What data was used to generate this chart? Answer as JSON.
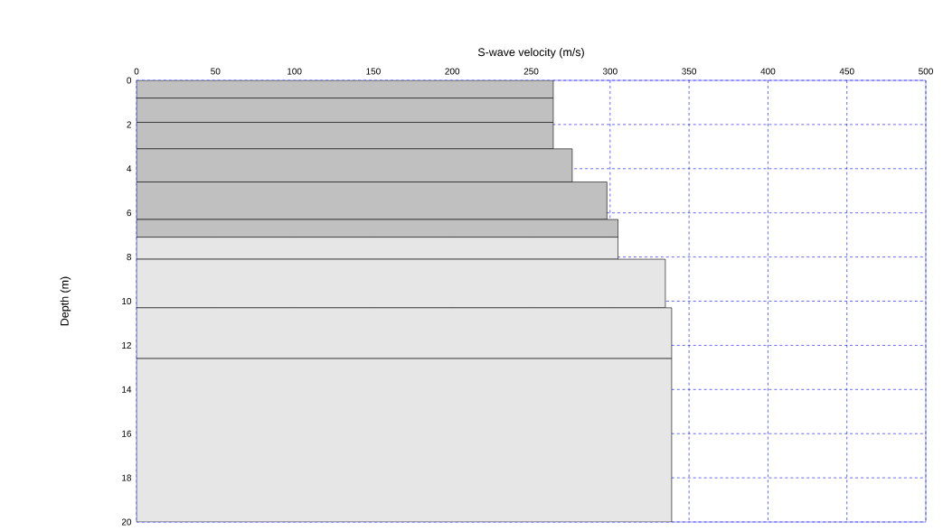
{
  "chart_data": {
    "type": "histogram",
    "orientation": "horizontal",
    "xlabel": "S-wave velocity (m/s)",
    "ylabel": "Depth (m)",
    "bins": [
      0,
      0.8,
      1.9,
      3.1,
      4.6,
      6.3,
      7.1,
      8.1,
      10.3,
      12.6,
      20
    ],
    "values": [
      264,
      264,
      264,
      276,
      298,
      305,
      305,
      335,
      339,
      339
    ],
    "colors": [
      "#c0c0c0",
      "#c0c0c0",
      "#c0c0c0",
      "#c0c0c0",
      "#c0c0c0",
      "#c0c0c0",
      "#e6e6e6",
      "#e6e6e6",
      "#e6e6e6",
      "#e6e6e6"
    ],
    "xlim": [
      0,
      500
    ],
    "ylim": [
      20,
      0
    ],
    "xticks": [
      0,
      50,
      100,
      150,
      200,
      250,
      300,
      350,
      400,
      450,
      500
    ],
    "yticks": [
      0,
      2,
      4,
      6,
      8,
      10,
      12,
      14,
      16,
      18,
      20
    ],
    "grid": true
  }
}
